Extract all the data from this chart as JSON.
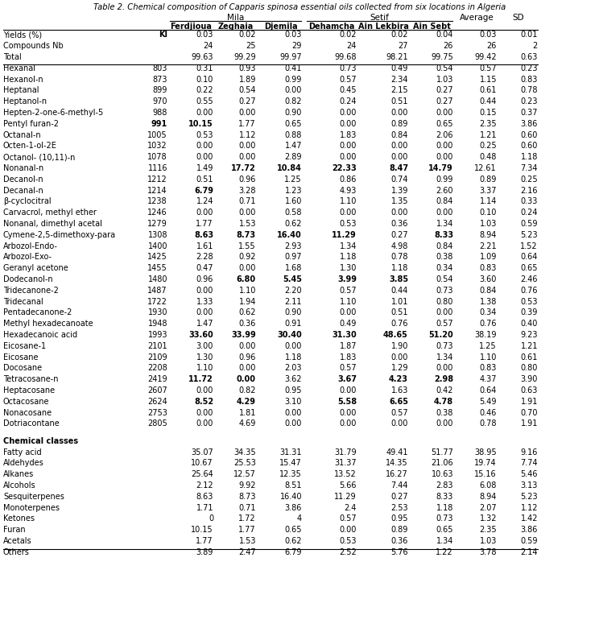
{
  "title": "Table 2. Chemical composition of Capparis spinosa essential oils collected from six locations in Algeria",
  "rows": [
    [
      "Yields (%)",
      "KI",
      "0.03",
      "0.02",
      "0.03",
      "0.02",
      "0.02",
      "0.04",
      "0.03",
      "0.01"
    ],
    [
      "Compounds Nb",
      "",
      "24",
      "25",
      "29",
      "24",
      "27",
      "26",
      "26",
      "2"
    ],
    [
      "Total",
      "",
      "99.63",
      "99.29",
      "99.97",
      "99.68",
      "98.21",
      "99.75",
      "99.42",
      "0.63"
    ],
    [
      "Hexanal",
      "803",
      "0.31",
      "0.93",
      "0.41",
      "0.73",
      "0.49",
      "0.54",
      "0.57",
      "0.23"
    ],
    [
      "Hexanol-n",
      "873",
      "0.10",
      "1.89",
      "0.99",
      "0.57",
      "2.34",
      "1.03",
      "1.15",
      "0.83"
    ],
    [
      "Heptanal",
      "899",
      "0.22",
      "0.54",
      "0.00",
      "0.45",
      "2.15",
      "0.27",
      "0.61",
      "0.78"
    ],
    [
      "Heptanol-n",
      "970",
      "0.55",
      "0.27",
      "0.82",
      "0.24",
      "0.51",
      "0.27",
      "0.44",
      "0.23"
    ],
    [
      "Hepten-2-one-6-methyl-5",
      "988",
      "0.00",
      "0.00",
      "0.90",
      "0.00",
      "0.00",
      "0.00",
      "0.15",
      "0.37"
    ],
    [
      "Pentyl furan-2",
      "991",
      "10.15",
      "1.77",
      "0.65",
      "0.00",
      "0.89",
      "0.65",
      "2.35",
      "3.86"
    ],
    [
      "Octanal-n",
      "1005",
      "0.53",
      "1.12",
      "0.88",
      "1.83",
      "0.84",
      "2.06",
      "1.21",
      "0.60"
    ],
    [
      "Octen-1-ol-2E",
      "1032",
      "0.00",
      "0.00",
      "1.47",
      "0.00",
      "0.00",
      "0.00",
      "0.25",
      "0.60"
    ],
    [
      "Octanol- (10,11)-n",
      "1078",
      "0.00",
      "0.00",
      "2.89",
      "0.00",
      "0.00",
      "0.00",
      "0.48",
      "1.18"
    ],
    [
      "Nonanal-n",
      "1116",
      "1.49",
      "17.72",
      "10.84",
      "22.33",
      "8.47",
      "14.79",
      "12.61",
      "7.34"
    ],
    [
      "Decanol-n",
      "1212",
      "0.51",
      "0.96",
      "1.25",
      "0.86",
      "0.74",
      "0.99",
      "0.89",
      "0.25"
    ],
    [
      "Decanal-n",
      "1214",
      "6.79",
      "3.28",
      "1.23",
      "4.93",
      "1.39",
      "2.60",
      "3.37",
      "2.16"
    ],
    [
      "β-cyclocitral",
      "1238",
      "1.24",
      "0.71",
      "1.60",
      "1.10",
      "1.35",
      "0.84",
      "1.14",
      "0.33"
    ],
    [
      "Carvacrol, methyl ether",
      "1246",
      "0.00",
      "0.00",
      "0.58",
      "0.00",
      "0.00",
      "0.00",
      "0.10",
      "0.24"
    ],
    [
      "Nonanal, dimethyl acetal",
      "1279",
      "1.77",
      "1.53",
      "0.62",
      "0.53",
      "0.36",
      "1.34",
      "1.03",
      "0.59"
    ],
    [
      "Cymene-2,5-dimethoxy-para",
      "1308",
      "8.63",
      "8.73",
      "16.40",
      "11.29",
      "0.27",
      "8.33",
      "8.94",
      "5.23"
    ],
    [
      "Arbozol-Endo-",
      "1400",
      "1.61",
      "1.55",
      "2.93",
      "1.34",
      "4.98",
      "0.84",
      "2.21",
      "1.52"
    ],
    [
      "Arbozol-Exo-",
      "1425",
      "2.28",
      "0.92",
      "0.97",
      "1.18",
      "0.78",
      "0.38",
      "1.09",
      "0.64"
    ],
    [
      "Geranyl acetone",
      "1455",
      "0.47",
      "0.00",
      "1.68",
      "1.30",
      "1.18",
      "0.34",
      "0.83",
      "0.65"
    ],
    [
      "Dodecanol-n",
      "1480",
      "0.96",
      "6.80",
      "5.45",
      "3.99",
      "3.85",
      "0.54",
      "3.60",
      "2.46"
    ],
    [
      "Tridecanone-2",
      "1487",
      "0.00",
      "1.10",
      "2.20",
      "0.57",
      "0.44",
      "0.73",
      "0.84",
      "0.76"
    ],
    [
      "Tridecanal",
      "1722",
      "1.33",
      "1.94",
      "2.11",
      "1.10",
      "1.01",
      "0.80",
      "1.38",
      "0.53"
    ],
    [
      "Pentadecanone-2",
      "1930",
      "0.00",
      "0.62",
      "0.90",
      "0.00",
      "0.51",
      "0.00",
      "0.34",
      "0.39"
    ],
    [
      "Methyl hexadecanoate",
      "1948",
      "1.47",
      "0.36",
      "0.91",
      "0.49",
      "0.76",
      "0.57",
      "0.76",
      "0.40"
    ],
    [
      "Hexadecanoic acid",
      "1993",
      "33.60",
      "33.99",
      "30.40",
      "31.30",
      "48.65",
      "51.20",
      "38.19",
      "9.23"
    ],
    [
      "Eicosane-1",
      "2101",
      "3.00",
      "0.00",
      "0.00",
      "1.87",
      "1.90",
      "0.73",
      "1.25",
      "1.21"
    ],
    [
      "Eicosane",
      "2109",
      "1.30",
      "0.96",
      "1.18",
      "1.83",
      "0.00",
      "1.34",
      "1.10",
      "0.61"
    ],
    [
      "Docosane",
      "2208",
      "1.10",
      "0.00",
      "2.03",
      "0.57",
      "1.29",
      "0.00",
      "0.83",
      "0.80"
    ],
    [
      "Tetracosane-n",
      "2419",
      "11.72",
      "0.00",
      "3.62",
      "3.67",
      "4.23",
      "2.98",
      "4.37",
      "3.90"
    ],
    [
      "Heptacosane",
      "2607",
      "0.00",
      "0.82",
      "0.95",
      "0.00",
      "1.63",
      "0.42",
      "0.64",
      "0.63"
    ],
    [
      "Octacosane",
      "2624",
      "8.52",
      "4.29",
      "3.10",
      "5.58",
      "6.65",
      "4.78",
      "5.49",
      "1.91"
    ],
    [
      "Nonacosane",
      "2753",
      "0.00",
      "1.81",
      "0.00",
      "0.00",
      "0.57",
      "0.38",
      "0.46",
      "0.70"
    ],
    [
      "Dotriacontane",
      "2805",
      "0.00",
      "4.69",
      "0.00",
      "0.00",
      "0.00",
      "0.00",
      "0.78",
      "1.91"
    ],
    [
      "",
      "",
      "",
      "",
      "",
      "",
      "",
      "",
      "",
      ""
    ],
    [
      "Chemical classes",
      "",
      "",
      "",
      "",
      "",
      "",
      "",
      "",
      ""
    ],
    [
      "Fatty acid",
      "",
      "35.07",
      "34.35",
      "31.31",
      "31.79",
      "49.41",
      "51.77",
      "38.95",
      "9.16"
    ],
    [
      "Aldehydes",
      "",
      "10.67",
      "25.53",
      "15.47",
      "31.37",
      "14.35",
      "21.06",
      "19.74",
      "7.74"
    ],
    [
      "Alkanes",
      "",
      "25.64",
      "12.57",
      "12.35",
      "13.52",
      "16.27",
      "10.63",
      "15.16",
      "5.46"
    ],
    [
      "Alcohols",
      "",
      "2.12",
      "9.92",
      "8.51",
      "5.66",
      "7.44",
      "2.83",
      "6.08",
      "3.13"
    ],
    [
      "Sesquiterpenes",
      "",
      "8.63",
      "8.73",
      "16.40",
      "11.29",
      "0.27",
      "8.33",
      "8.94",
      "5.23"
    ],
    [
      "Monoterpenes",
      "",
      "1.71",
      "0.71",
      "3.86",
      "2.4",
      "2.53",
      "1.18",
      "2.07",
      "1.12"
    ],
    [
      "Ketones",
      "",
      "0",
      "1.72",
      "4",
      "0.57",
      "0.95",
      "0.73",
      "1.32",
      "1.42"
    ],
    [
      "Furan",
      "",
      "10.15",
      "1.77",
      "0.65",
      "0.00",
      "0.89",
      "0.65",
      "2.35",
      "3.86"
    ],
    [
      "Acetals",
      "",
      "1.77",
      "1.53",
      "0.62",
      "0.53",
      "0.36",
      "1.34",
      "1.03",
      "0.59"
    ],
    [
      "Others",
      "",
      "3.89",
      "2.47",
      "6.79",
      "2.52",
      "5.76",
      "1.22",
      "3.78",
      "2.14"
    ]
  ],
  "bold_cells": {
    "8_1": true,
    "8_2": true,
    "12_3": true,
    "12_4": true,
    "12_5": true,
    "12_6": true,
    "12_7": true,
    "14_2": true,
    "18_2": true,
    "18_3": true,
    "18_4": true,
    "18_5": true,
    "18_7": true,
    "22_3": true,
    "22_4": true,
    "22_5": true,
    "22_6": true,
    "27_2": true,
    "27_3": true,
    "27_4": true,
    "27_5": true,
    "27_6": true,
    "27_7": true,
    "31_2": true,
    "31_3": true,
    "31_5": true,
    "31_6": true,
    "31_7": true,
    "33_2": true,
    "33_3": true,
    "33_5": true,
    "33_6": true,
    "33_7": true
  }
}
